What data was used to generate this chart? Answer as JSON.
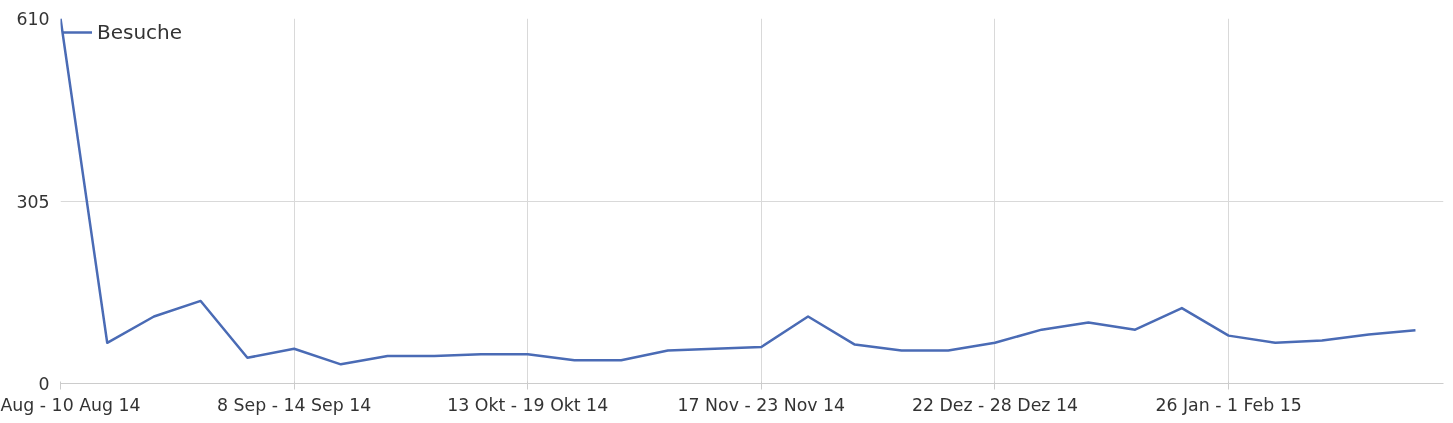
{
  "chart_data": {
    "type": "line",
    "categories": [
      "Aug - 10 Aug 14",
      null,
      null,
      null,
      null,
      "8 Sep - 14 Sep 14",
      null,
      null,
      null,
      null,
      "13 Okt - 19 Okt 14",
      null,
      null,
      null,
      null,
      "17 Nov - 23 Nov 14",
      null,
      null,
      null,
      null,
      "22 Dez - 28 Dez 14",
      null,
      null,
      null,
      null,
      "26 Jan - 1 Feb 15",
      null,
      null,
      null,
      null
    ],
    "series": [
      {
        "name": "Besuche",
        "color": "#4a6bb5",
        "values": [
          610,
          68,
          112,
          138,
          43,
          58,
          32,
          46,
          46,
          49,
          49,
          39,
          39,
          55,
          58,
          61,
          112,
          65,
          55,
          55,
          68,
          90,
          102,
          90,
          126,
          80,
          68,
          72,
          82,
          89
        ]
      }
    ],
    "ylim": [
      0,
      610
    ],
    "yticks": [
      0,
      305,
      610
    ],
    "grid": true,
    "legend": "top left",
    "marker": "none",
    "line_style": "solid"
  }
}
